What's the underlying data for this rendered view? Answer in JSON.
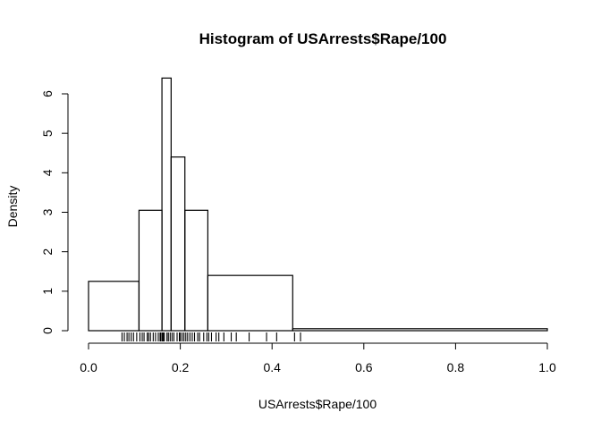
{
  "chart_data": {
    "type": "histogram",
    "title": "Histogram of USArrests$Rape/100",
    "xlabel": "USArrests$Rape/100",
    "ylabel": "Density",
    "xlim": [
      0,
      1
    ],
    "ylim": [
      0,
      6.4
    ],
    "x_ticks": [
      0,
      0.2,
      0.4,
      0.6,
      0.8,
      1.0
    ],
    "x_tick_labels": [
      "0.0",
      "0.2",
      "0.4",
      "0.6",
      "0.8",
      "1.0"
    ],
    "y_ticks": [
      0,
      1,
      2,
      3,
      4,
      5,
      6
    ],
    "y_tick_labels": [
      "0",
      "1",
      "2",
      "3",
      "4",
      "5",
      "6"
    ],
    "bins": [
      {
        "x0": 0.0,
        "x1": 0.11,
        "density": 1.25
      },
      {
        "x0": 0.11,
        "x1": 0.16,
        "density": 3.05
      },
      {
        "x0": 0.16,
        "x1": 0.18,
        "density": 6.4
      },
      {
        "x0": 0.18,
        "x1": 0.21,
        "density": 4.4
      },
      {
        "x0": 0.21,
        "x1": 0.26,
        "density": 3.05
      },
      {
        "x0": 0.26,
        "x1": 0.445,
        "density": 1.4
      },
      {
        "x0": 0.445,
        "x1": 1.0,
        "density": 0.05
      }
    ],
    "rug": [
      0.073,
      0.078,
      0.084,
      0.088,
      0.093,
      0.098,
      0.105,
      0.112,
      0.117,
      0.121,
      0.128,
      0.131,
      0.135,
      0.141,
      0.146,
      0.152,
      0.156,
      0.158,
      0.161,
      0.163,
      0.165,
      0.171,
      0.174,
      0.178,
      0.182,
      0.186,
      0.193,
      0.198,
      0.2,
      0.204,
      0.208,
      0.212,
      0.216,
      0.221,
      0.226,
      0.231,
      0.238,
      0.242,
      0.251,
      0.258,
      0.262,
      0.268,
      0.278,
      0.284,
      0.295,
      0.311,
      0.322,
      0.35,
      0.388,
      0.41,
      0.449,
      0.462
    ],
    "grid": false,
    "legend": "none"
  }
}
